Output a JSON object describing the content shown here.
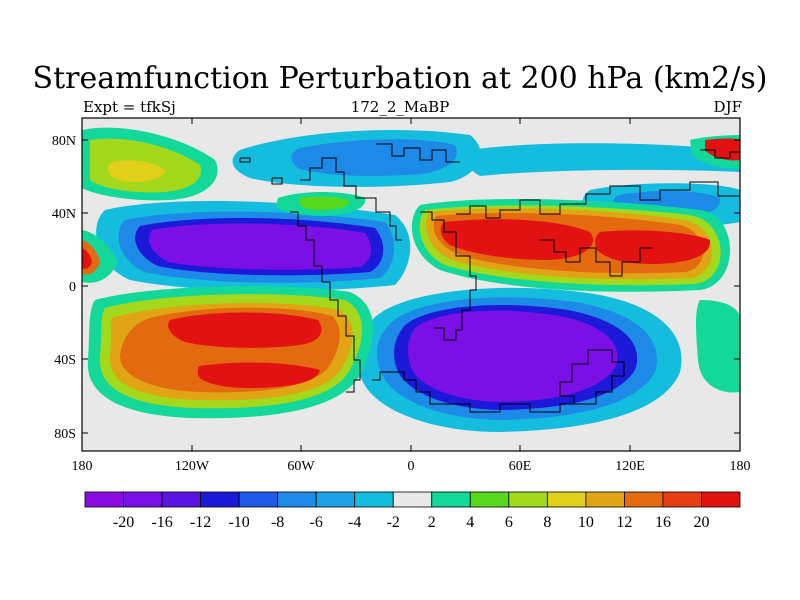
{
  "title": "Streamfunction Perturbation at 200 hPa (km2/s)",
  "subtitle_left": "Expt = tfkSj",
  "subtitle_center": "172_2_MaBP",
  "subtitle_right": "DJF",
  "x_ticks": [
    "180",
    "120W",
    "60W",
    "0",
    "60E",
    "120E",
    "180"
  ],
  "y_ticks": [
    "80N",
    "40N",
    "0",
    "40S",
    "80S"
  ],
  "colorbar": {
    "colors": [
      "#8a0ce0",
      "#7a10e6",
      "#5a14e4",
      "#1c1ad8",
      "#1e5ae8",
      "#1e8ae8",
      "#1ea2e6",
      "#14bcde",
      "#e8e8e8",
      "#14d89a",
      "#58d81c",
      "#a4d81c",
      "#e0d01a",
      "#e0a414",
      "#e46a10",
      "#e43e12",
      "#e21212"
    ],
    "labels": [
      "-20",
      "-16",
      "-12",
      "-10",
      "-8",
      "-6",
      "-4",
      "-2",
      "2",
      "4",
      "6",
      "8",
      "10",
      "12",
      "16",
      "20"
    ]
  },
  "map_fills": {
    "background": "#e8e8e8",
    "neg_outer": "#14bcde",
    "neg_mid": "#1e8ae8",
    "neg_inner": "#1c1ad8",
    "neg_core": "#7a10e6",
    "pos_outer": "#14d89a",
    "pos_mid": "#a4d81c",
    "pos_warm": "#e0a414",
    "pos_hot": "#e46a10",
    "pos_core": "#e21212"
  }
}
